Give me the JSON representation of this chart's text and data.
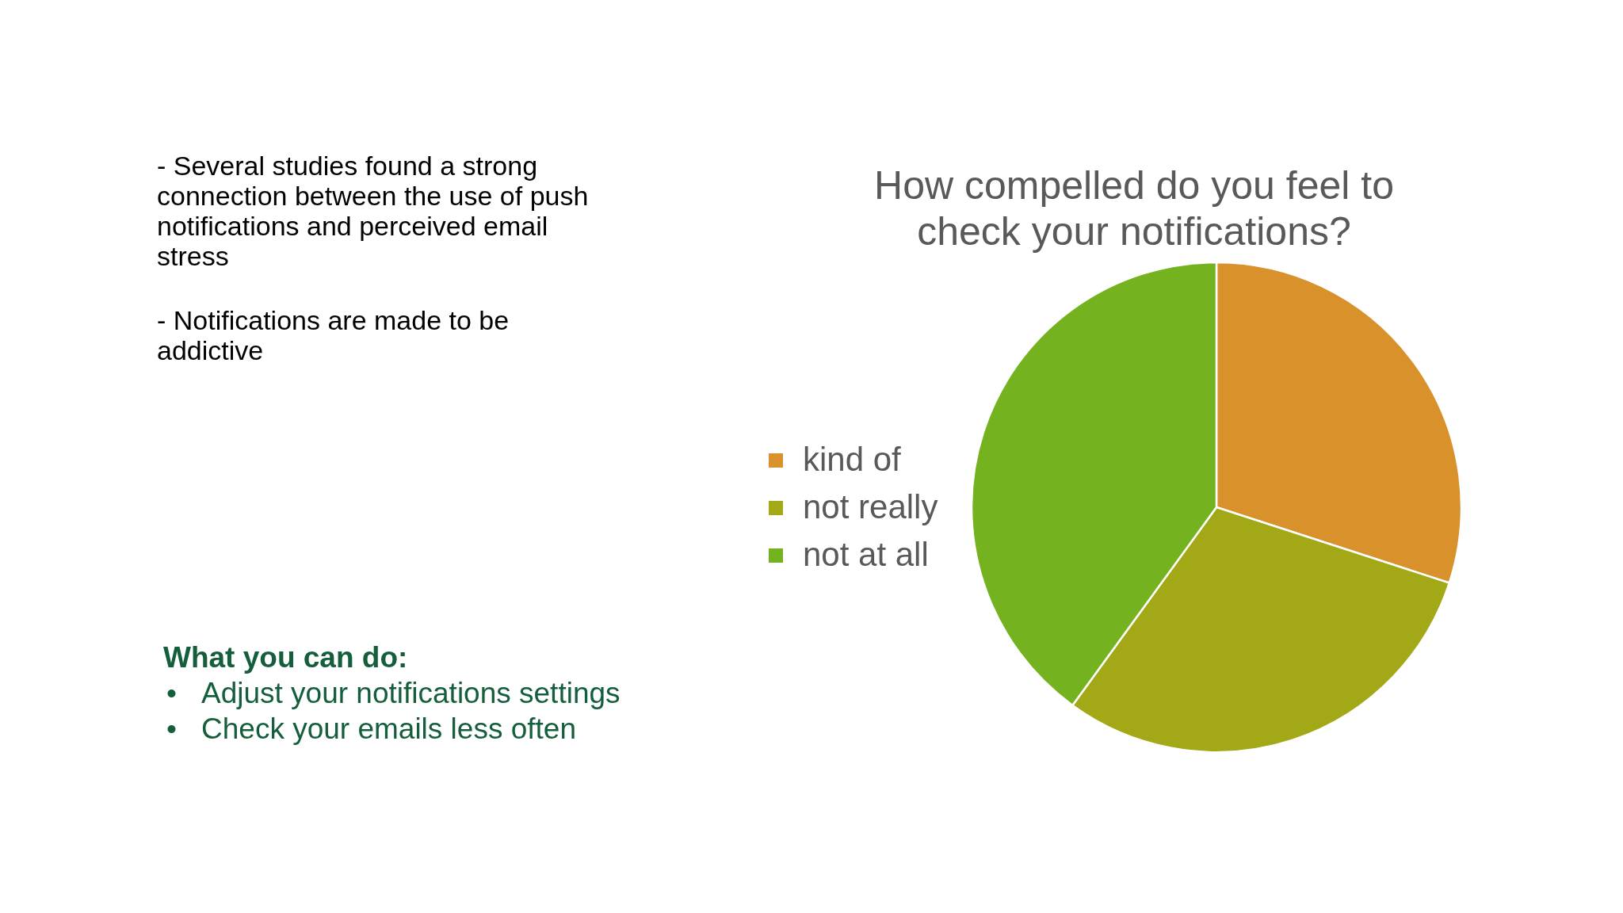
{
  "chart_data": [
    {
      "type": "other",
      "annotations": [
        "- Several studies found a strong connection between the use of push notifications and perceived email stress",
        "- Notifications are made to be addictive",
        "What you can do:",
        "• Adjust your notifications settings",
        "• Check your emails less often"
      ]
    },
    {
      "type": "pie",
      "title": "How compelled do you feel to check your notifications?",
      "categories": [
        "kind of",
        "not really",
        "not at all"
      ],
      "values": [
        30,
        30,
        40
      ],
      "colors": [
        "#d9922b",
        "#a2a816",
        "#74b31f"
      ],
      "legend": "left"
    }
  ]
}
